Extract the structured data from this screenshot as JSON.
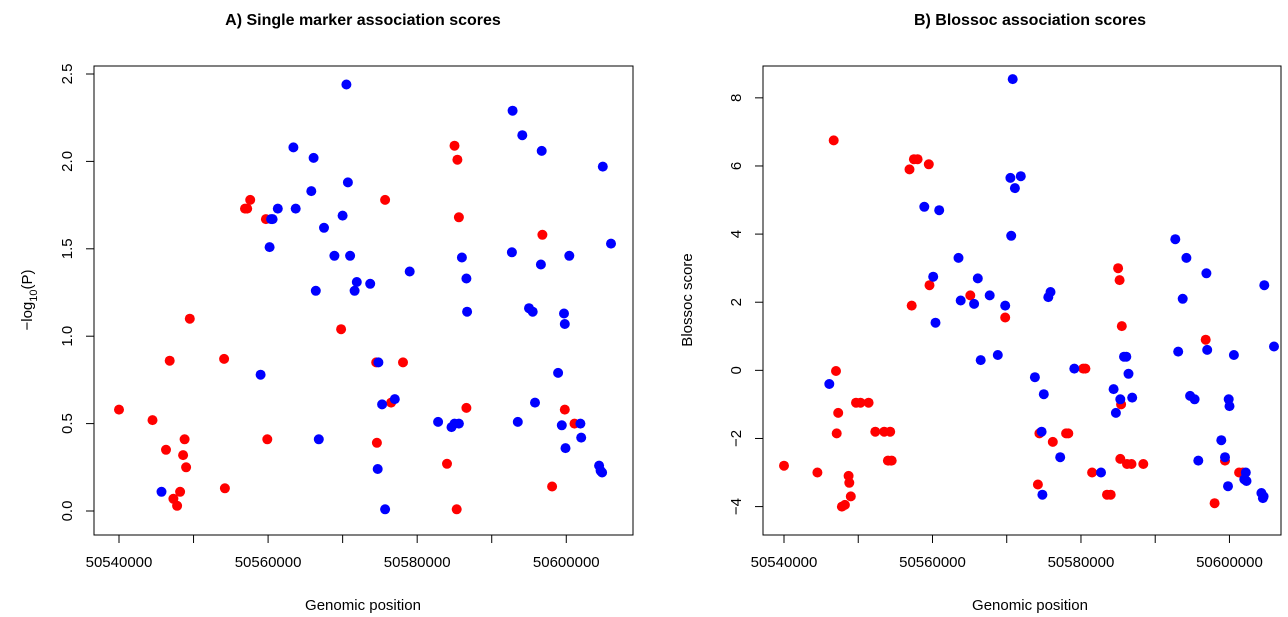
{
  "chart_data": [
    {
      "type": "scatter",
      "title": "A) Single marker association scores",
      "xlabel": "Genomic position",
      "ylabel_main": "−log",
      "ylabel_sub": "10",
      "ylabel_tail": "(P)",
      "xlim": [
        50540000,
        50606000
      ],
      "ylim": [
        0,
        2.5
      ],
      "xticks": [
        50540000,
        50560000,
        50580000,
        50600000
      ],
      "xtick_labels": [
        "50540000",
        "50560000",
        "50580000",
        "50600000"
      ],
      "yticks": [
        0,
        0.5,
        1,
        1.5,
        2,
        2.5
      ],
      "ytick_labels": [
        "0.0",
        "0.5",
        "1.0",
        "1.5",
        "2.0",
        "2.5"
      ],
      "grid": false,
      "colors": {
        "red": "#ff0000",
        "blue": "#0000ff"
      },
      "series": [
        {
          "color": "#ff0000",
          "points": [
            [
              50540000,
              0.58
            ],
            [
              50544500,
              0.52
            ],
            [
              50546300,
              0.35
            ],
            [
              50546800,
              0.86
            ],
            [
              50547300,
              0.07
            ],
            [
              50547800,
              0.03
            ],
            [
              50548200,
              0.11
            ],
            [
              50548600,
              0.32
            ],
            [
              50548800,
              0.41
            ],
            [
              50549000,
              0.25
            ],
            [
              50549500,
              1.1
            ],
            [
              50554100,
              0.87
            ],
            [
              50554200,
              0.13
            ],
            [
              50556900,
              1.73
            ],
            [
              50557200,
              1.73
            ],
            [
              50557600,
              1.78
            ],
            [
              50559700,
              1.67
            ],
            [
              50559900,
              0.41
            ],
            [
              50569800,
              1.04
            ],
            [
              50574500,
              0.85
            ],
            [
              50574600,
              0.39
            ],
            [
              50575700,
              1.78
            ],
            [
              50576500,
              0.62
            ],
            [
              50578100,
              0.85
            ],
            [
              50584000,
              0.27
            ],
            [
              50585000,
              2.09
            ],
            [
              50585300,
              0.01
            ],
            [
              50585400,
              2.01
            ],
            [
              50585600,
              1.68
            ],
            [
              50586600,
              0.59
            ],
            [
              50596800,
              1.58
            ],
            [
              50598100,
              0.14
            ],
            [
              50599800,
              0.58
            ],
            [
              50601100,
              0.5
            ]
          ]
        },
        {
          "color": "#0000ff",
          "points": [
            [
              50545700,
              0.11
            ],
            [
              50559000,
              0.78
            ],
            [
              50560200,
              1.51
            ],
            [
              50560400,
              1.67
            ],
            [
              50560600,
              1.67
            ],
            [
              50561300,
              1.73
            ],
            [
              50563400,
              2.08
            ],
            [
              50563700,
              1.73
            ],
            [
              50565800,
              1.83
            ],
            [
              50566100,
              2.02
            ],
            [
              50566400,
              1.26
            ],
            [
              50566800,
              0.41
            ],
            [
              50567500,
              1.62
            ],
            [
              50568900,
              1.46
            ],
            [
              50570000,
              1.69
            ],
            [
              50570500,
              2.44
            ],
            [
              50570700,
              1.88
            ],
            [
              50571000,
              1.46
            ],
            [
              50571600,
              1.26
            ],
            [
              50571900,
              1.31
            ],
            [
              50573700,
              1.3
            ],
            [
              50574700,
              0.24
            ],
            [
              50574800,
              0.85
            ],
            [
              50575300,
              0.61
            ],
            [
              50575700,
              0.01
            ],
            [
              50577000,
              0.64
            ],
            [
              50579000,
              1.37
            ],
            [
              50582800,
              0.51
            ],
            [
              50584600,
              0.48
            ],
            [
              50585000,
              0.5
            ],
            [
              50585600,
              0.5
            ],
            [
              50586000,
              1.45
            ],
            [
              50586600,
              1.33
            ],
            [
              50586700,
              1.14
            ],
            [
              50592700,
              1.48
            ],
            [
              50592800,
              2.29
            ],
            [
              50593500,
              0.51
            ],
            [
              50594100,
              2.15
            ],
            [
              50595000,
              1.16
            ],
            [
              50595500,
              1.14
            ],
            [
              50595800,
              0.62
            ],
            [
              50596600,
              1.41
            ],
            [
              50596700,
              2.06
            ],
            [
              50598900,
              0.79
            ],
            [
              50599400,
              0.49
            ],
            [
              50599700,
              1.13
            ],
            [
              50599800,
              1.07
            ],
            [
              50599900,
              0.36
            ],
            [
              50600400,
              1.46
            ],
            [
              50601900,
              0.5
            ],
            [
              50602000,
              0.42
            ],
            [
              50604400,
              0.26
            ],
            [
              50604600,
              0.23
            ],
            [
              50604800,
              0.22
            ],
            [
              50604900,
              1.97
            ],
            [
              50606000,
              1.53
            ]
          ]
        }
      ]
    },
    {
      "type": "scatter",
      "title": "B) Blossoc association scores",
      "xlabel": "Genomic position",
      "ylabel": "Blossoc score",
      "xlim": [
        50540000,
        50606000
      ],
      "ylim": [
        -4.1,
        8.7
      ],
      "xticks": [
        50540000,
        50560000,
        50580000,
        50600000
      ],
      "xtick_labels": [
        "50540000",
        "50560000",
        "50580000",
        "50600000"
      ],
      "yticks": [
        -4,
        -2,
        0,
        2,
        4,
        6,
        8
      ],
      "ytick_labels": [
        "−4",
        "−2",
        "0",
        "2",
        "4",
        "6",
        "8"
      ],
      "grid": false,
      "series": [
        {
          "color": "#ff0000",
          "points": [
            [
              50540000,
              -2.8
            ],
            [
              50544500,
              -3.0
            ],
            [
              50546700,
              6.75
            ],
            [
              50547000,
              -0.02
            ],
            [
              50547100,
              -1.85
            ],
            [
              50547300,
              -1.25
            ],
            [
              50547800,
              -4.0
            ],
            [
              50548200,
              -3.95
            ],
            [
              50548700,
              -3.1
            ],
            [
              50548800,
              -3.3
            ],
            [
              50549000,
              -3.7
            ],
            [
              50549700,
              -0.95
            ],
            [
              50550300,
              -0.95
            ],
            [
              50551400,
              -0.95
            ],
            [
              50552300,
              -1.8
            ],
            [
              50553500,
              -1.8
            ],
            [
              50554000,
              -2.65
            ],
            [
              50554300,
              -1.8
            ],
            [
              50554500,
              -2.65
            ],
            [
              50556900,
              5.9
            ],
            [
              50557200,
              1.9
            ],
            [
              50557500,
              6.2
            ],
            [
              50558000,
              6.2
            ],
            [
              50559500,
              6.05
            ],
            [
              50559600,
              2.5
            ],
            [
              50565100,
              2.2
            ],
            [
              50569800,
              1.55
            ],
            [
              50574200,
              -3.35
            ],
            [
              50574400,
              -1.85
            ],
            [
              50576200,
              -2.1
            ],
            [
              50578000,
              -1.85
            ],
            [
              50578300,
              -1.85
            ],
            [
              50580300,
              0.05
            ],
            [
              50580600,
              0.05
            ],
            [
              50581500,
              -3.0
            ],
            [
              50583500,
              -3.65
            ],
            [
              50584000,
              -3.65
            ],
            [
              50585000,
              3.0
            ],
            [
              50585200,
              2.65
            ],
            [
              50585300,
              -2.6
            ],
            [
              50585400,
              -1.0
            ],
            [
              50585500,
              1.3
            ],
            [
              50586200,
              -2.75
            ],
            [
              50586800,
              -2.75
            ],
            [
              50588400,
              -2.75
            ],
            [
              50596800,
              0.9
            ],
            [
              50598000,
              -3.9
            ],
            [
              50599400,
              -2.65
            ],
            [
              50601300,
              -3.0
            ],
            [
              50601800,
              -3.0
            ]
          ]
        },
        {
          "color": "#0000ff",
          "points": [
            [
              50546100,
              -0.4
            ],
            [
              50558900,
              4.8
            ],
            [
              50560100,
              2.75
            ],
            [
              50560400,
              1.4
            ],
            [
              50560900,
              4.7
            ],
            [
              50563500,
              3.3
            ],
            [
              50563800,
              2.05
            ],
            [
              50565600,
              1.95
            ],
            [
              50566100,
              2.7
            ],
            [
              50566500,
              0.3
            ],
            [
              50567700,
              2.2
            ],
            [
              50568800,
              0.45
            ],
            [
              50569800,
              1.9
            ],
            [
              50570500,
              5.65
            ],
            [
              50570600,
              3.95
            ],
            [
              50570800,
              8.55
            ],
            [
              50571100,
              5.35
            ],
            [
              50571900,
              5.7
            ],
            [
              50573800,
              -0.2
            ],
            [
              50574700,
              -1.8
            ],
            [
              50574800,
              -3.65
            ],
            [
              50575000,
              -0.7
            ],
            [
              50575600,
              2.15
            ],
            [
              50575900,
              2.3
            ],
            [
              50577200,
              -2.55
            ],
            [
              50579100,
              0.05
            ],
            [
              50582700,
              -3.0
            ],
            [
              50584400,
              -0.55
            ],
            [
              50584700,
              -1.25
            ],
            [
              50585300,
              -0.85
            ],
            [
              50585800,
              0.4
            ],
            [
              50586100,
              0.4
            ],
            [
              50586400,
              -0.1
            ],
            [
              50586900,
              -0.8
            ],
            [
              50592700,
              3.85
            ],
            [
              50593100,
              0.55
            ],
            [
              50593700,
              2.1
            ],
            [
              50594200,
              3.3
            ],
            [
              50594700,
              -0.75
            ],
            [
              50595300,
              -0.85
            ],
            [
              50595800,
              -2.65
            ],
            [
              50596900,
              2.85
            ],
            [
              50597000,
              0.6
            ],
            [
              50598900,
              -2.05
            ],
            [
              50599400,
              -2.55
            ],
            [
              50599800,
              -3.4
            ],
            [
              50599900,
              -0.85
            ],
            [
              50600000,
              -1.05
            ],
            [
              50600600,
              0.45
            ],
            [
              50602000,
              -3.2
            ],
            [
              50602200,
              -3.0
            ],
            [
              50602300,
              -3.25
            ],
            [
              50604300,
              -3.6
            ],
            [
              50604500,
              -3.75
            ],
            [
              50604600,
              -3.7
            ],
            [
              50604700,
              2.5
            ],
            [
              50606000,
              0.7
            ]
          ]
        }
      ]
    }
  ]
}
